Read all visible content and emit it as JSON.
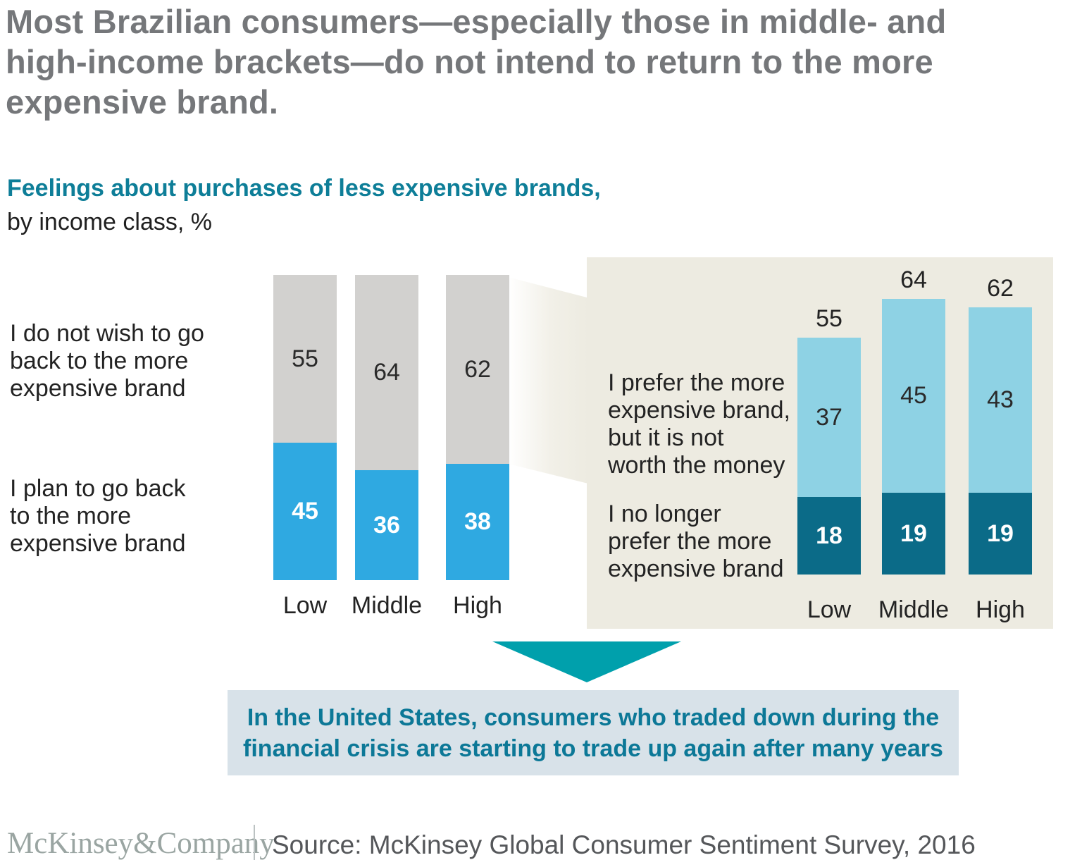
{
  "title_lines": [
    "Most Brazilian consumers—especially those in middle- and",
    "high-income brackets—do not intend to return to the more",
    "expensive brand."
  ],
  "subtitle": {
    "heading": "Feelings about purchases of less expensive brands,",
    "subheading": "by income class, %"
  },
  "left_chart": {
    "row_labels": [
      [
        "I do not wish to go",
        "back to the more",
        "expensive brand"
      ],
      [
        "I plan to go back",
        "to the more",
        "expensive brand"
      ]
    ]
  },
  "right_panel": {
    "row_labels": [
      [
        "I prefer the more",
        "expensive brand,",
        "but it is not",
        "worth the money"
      ],
      [
        "I no longer",
        "prefer the more",
        "expensive brand"
      ]
    ]
  },
  "chart_data": [
    {
      "type": "bar",
      "stacked": true,
      "title": "Feelings about purchases of less expensive brands, by income class, %",
      "categories": [
        "Low",
        "Middle",
        "High"
      ],
      "series": [
        {
          "name": "I do not wish to go back to the more expensive brand",
          "values": [
            55,
            64,
            62
          ],
          "color": "#d2d1cf"
        },
        {
          "name": "I plan to go back to the more expensive brand",
          "values": [
            45,
            36,
            38
          ],
          "color": "#2fa9e1"
        }
      ],
      "value_unit": "%",
      "ylim": [
        0,
        100
      ],
      "grid": false,
      "legend_position": "row-labels-left"
    },
    {
      "type": "bar",
      "stacked": true,
      "categories": [
        "Low",
        "Middle",
        "High"
      ],
      "totals": [
        55,
        64,
        62
      ],
      "series": [
        {
          "name": "I prefer the more expensive brand, but it is not worth the money",
          "values": [
            37,
            45,
            43
          ],
          "color": "#8ed2e4"
        },
        {
          "name": "I no longer prefer the more expensive brand",
          "values": [
            18,
            19,
            19
          ],
          "color": "#0b6b88"
        }
      ],
      "value_unit": "%",
      "grid": false,
      "legend_position": "row-labels-left"
    }
  ],
  "callout": {
    "text_lines": [
      "In the United States, consumers who traded down during the",
      "financial crisis are starting to trade up again after many years"
    ]
  },
  "footer": {
    "logo": "McKinsey&Company",
    "source": "Source: McKinsey Global Consumer Sentiment Survey, 2016"
  },
  "colors": {
    "title_gray": "#75777a",
    "heading_teal": "#0e7e98",
    "bar_gray": "#d2d1cf",
    "bar_blue": "#2fa9e1",
    "bar_light_blue": "#8ed2e4",
    "bar_dark_teal": "#0b6b88",
    "panel_beige": "#edebe1",
    "arrow_teal": "#00a0ac",
    "callout_bg": "#d8e2e9",
    "callout_text": "#0c7897",
    "logo_gray": "#9aa5a2",
    "source_gray": "#55575a"
  }
}
